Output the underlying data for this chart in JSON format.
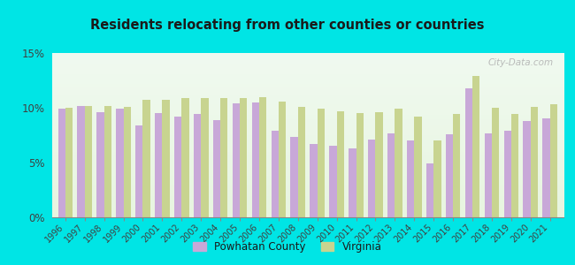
{
  "title": "Residents relocating from other counties or countries",
  "years": [
    1996,
    1997,
    1998,
    1999,
    2000,
    2001,
    2002,
    2003,
    2004,
    2005,
    2006,
    2007,
    2008,
    2009,
    2010,
    2011,
    2012,
    2013,
    2014,
    2015,
    2016,
    2017,
    2018,
    2019,
    2020,
    2021
  ],
  "powhatan": [
    9.9,
    10.2,
    9.6,
    9.9,
    8.4,
    9.5,
    9.2,
    9.4,
    8.9,
    10.4,
    10.5,
    7.9,
    7.3,
    6.7,
    6.5,
    6.3,
    7.1,
    7.7,
    7.0,
    4.9,
    7.6,
    11.8,
    7.7,
    7.9,
    8.8,
    9.0
  ],
  "virginia": [
    10.0,
    10.2,
    10.2,
    10.1,
    10.7,
    10.7,
    10.9,
    10.9,
    10.9,
    10.9,
    11.0,
    10.6,
    10.1,
    9.9,
    9.7,
    9.5,
    9.6,
    9.9,
    9.2,
    7.0,
    9.4,
    12.9,
    10.0,
    9.4,
    10.1,
    10.3
  ],
  "powhatan_color": "#c8a8d8",
  "virginia_color": "#c8d490",
  "background_color": "#00e5e5",
  "ylim": [
    0,
    15
  ],
  "yticks": [
    0,
    5,
    10,
    15
  ],
  "ytick_labels": [
    "0%",
    "5%",
    "10%",
    "15%"
  ],
  "legend_powhatan": "Powhatan County",
  "legend_virginia": "Virginia",
  "watermark": "City-Data.com"
}
